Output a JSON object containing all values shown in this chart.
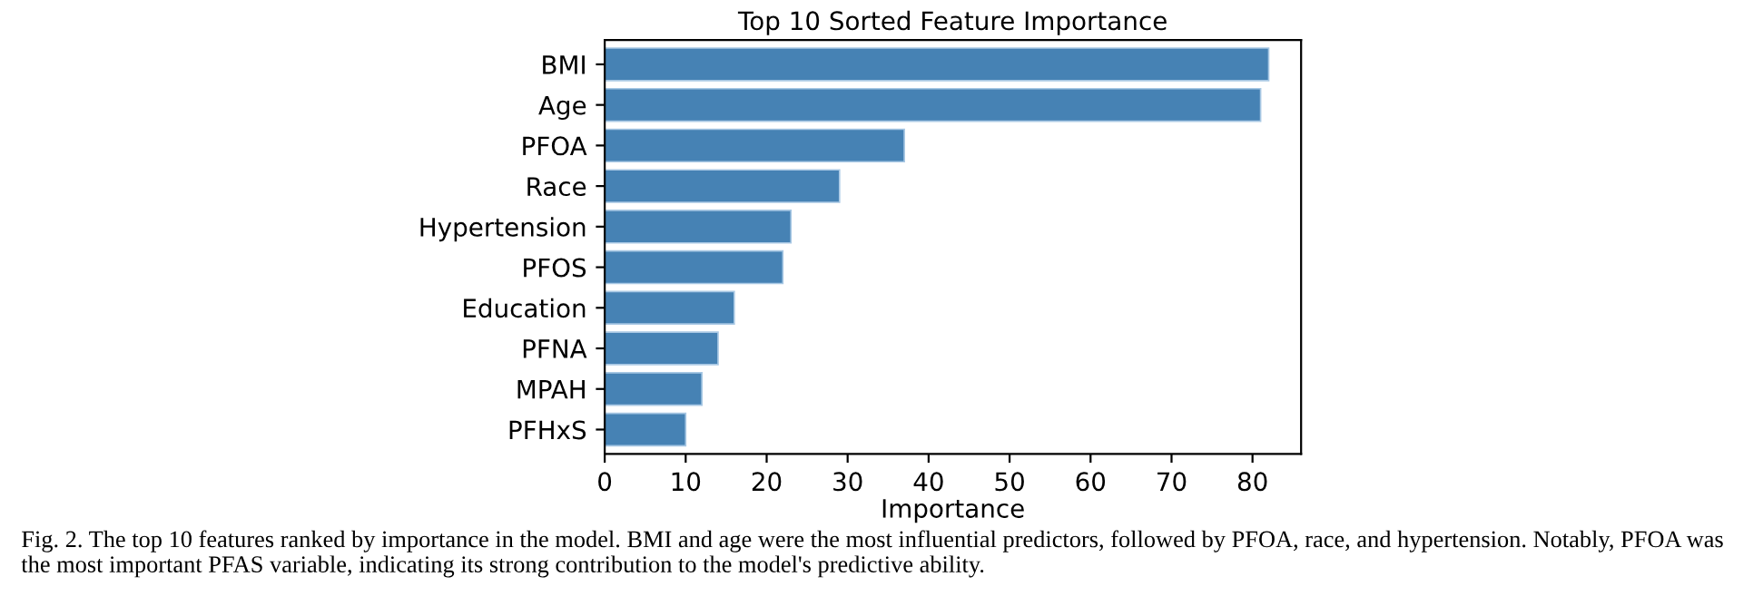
{
  "chart_data": {
    "type": "bar",
    "orientation": "horizontal",
    "title": "Top 10 Sorted Feature Importance",
    "xlabel": "Importance",
    "categories": [
      "BMI",
      "Age",
      "PFOA",
      "Race",
      "Hypertension",
      "PFOS",
      "Education",
      "PFNA",
      "MPAH",
      "PFHxS"
    ],
    "values": [
      82,
      81,
      37,
      29,
      23,
      22,
      16,
      14,
      12,
      10
    ],
    "color": "#4682b4",
    "xlim": [
      0,
      86
    ],
    "xticks": [
      0,
      10,
      20,
      30,
      40,
      50,
      60,
      70,
      80
    ],
    "grid": false,
    "legend": false,
    "annotations": [
      "Fig. 2. The top 10 features ranked by importance in the model. BMI and age were the most influential predictors, followed by PFOA, race, and hypertension. Notably, PFOA was the most important PFAS variable, indicating its strong contribution to the model's predictive ability."
    ]
  }
}
